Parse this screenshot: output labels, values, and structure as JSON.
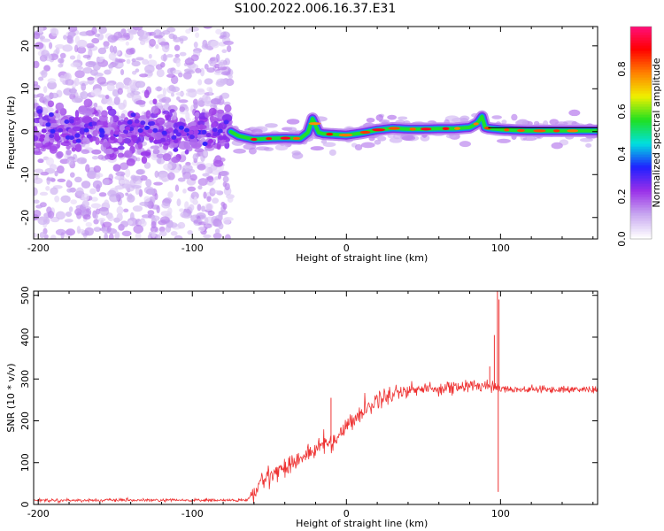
{
  "title": "S100.2022.006.16.37.E31",
  "chart_data": [
    {
      "type": "heatmap",
      "xlabel": "Height of straight line (km)",
      "ylabel": "Frequency (Hz)",
      "xlim": [
        -203,
        163
      ],
      "ylim": [
        -25,
        24.5
      ],
      "x_ticks": [
        -200,
        -100,
        0,
        100
      ],
      "y_ticks": [
        -20,
        -10,
        0,
        10,
        20
      ],
      "colorbar": {
        "label": "Normalized spectral amplitude",
        "range": [
          0,
          1
        ],
        "ticks": [
          0.0,
          0.2,
          0.4,
          0.6,
          0.8
        ],
        "colormap": [
          "#ffffff",
          "#c8a8f0",
          "#9a30e8",
          "#2020ff",
          "#00e0e0",
          "#20e020",
          "#f0f000",
          "#ff8000",
          "#ff0000",
          "#ff1080"
        ]
      },
      "ridge": {
        "x": [
          -75,
          -70,
          -60,
          -50,
          -40,
          -30,
          -25,
          -22,
          -18,
          -15,
          -10,
          0,
          10,
          20,
          30,
          40,
          50,
          60,
          70,
          80,
          85,
          88,
          90,
          92,
          100,
          110,
          120,
          130,
          140,
          150,
          163
        ],
        "y": [
          0,
          -1.0,
          -1.8,
          -1.6,
          -1.5,
          -1.6,
          -0.2,
          3.0,
          -0.2,
          -0.5,
          -0.6,
          -0.8,
          -0.3,
          0.4,
          0.8,
          0.6,
          0.6,
          0.7,
          0.7,
          1.0,
          2.0,
          3.5,
          1.0,
          0.8,
          0.5,
          0.3,
          0.2,
          0.2,
          0.2,
          0.2,
          0.2
        ]
      },
      "noise_region_x": [
        -203,
        -75
      ],
      "noise_band_hz": [
        -4,
        4
      ],
      "noise_spread_hz": [
        -25,
        24.5
      ]
    },
    {
      "type": "line",
      "xlabel": "Height of straight line (km)",
      "ylabel": "SNR (10 * v/v)",
      "xlim": [
        -203,
        163
      ],
      "ylim": [
        0,
        510
      ],
      "x_ticks": [
        -200,
        -100,
        0,
        100
      ],
      "y_ticks": [
        0,
        100,
        200,
        300,
        400,
        500
      ],
      "series_color": "#ee3333",
      "trend": {
        "x": [
          -203,
          -150,
          -100,
          -75,
          -65,
          -60,
          -55,
          -50,
          -40,
          -30,
          -20,
          -15,
          -10,
          -5,
          0,
          10,
          20,
          30,
          40,
          50,
          60,
          70,
          80,
          90,
          95,
          100,
          110,
          120,
          130,
          140,
          150,
          163
        ],
        "y": [
          10,
          10,
          10,
          10,
          10,
          25,
          55,
          70,
          90,
          110,
          130,
          145,
          150,
          160,
          190,
          220,
          250,
          265,
          275,
          275,
          278,
          280,
          282,
          285,
          285,
          278,
          275,
          275,
          275,
          275,
          275,
          275
        ]
      },
      "spikes": [
        {
          "x": -10,
          "y": 255
        },
        {
          "x": 93,
          "y": 330
        },
        {
          "x": 96,
          "y": 405
        },
        {
          "x": 98,
          "y": 510
        },
        {
          "x": 98.5,
          "y": 30
        },
        {
          "x": 99,
          "y": 490
        }
      ]
    }
  ]
}
